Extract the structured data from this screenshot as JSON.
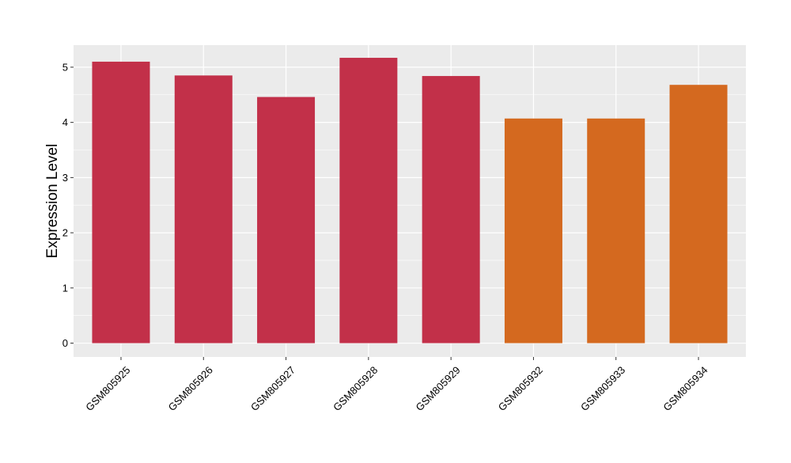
{
  "chart_data": {
    "type": "bar",
    "title": "",
    "xlabel": "",
    "ylabel": "Expression Level",
    "categories": [
      "GSM805925",
      "GSM805926",
      "GSM805927",
      "GSM805928",
      "GSM805929",
      "GSM805932",
      "GSM805933",
      "GSM805934"
    ],
    "values": [
      5.1,
      4.85,
      4.46,
      5.17,
      4.84,
      4.07,
      4.07,
      4.68
    ],
    "bar_colors": [
      "#c23049",
      "#c23049",
      "#c23049",
      "#c23049",
      "#c23049",
      "#d4691f",
      "#d4691f",
      "#d4691f"
    ],
    "ylim": [
      -0.25,
      5.4
    ],
    "yticks": [
      "0",
      "1",
      "2",
      "3",
      "4",
      "5"
    ],
    "grid": true,
    "panel_background": "#ebebeb",
    "grid_color": "#ffffff"
  }
}
